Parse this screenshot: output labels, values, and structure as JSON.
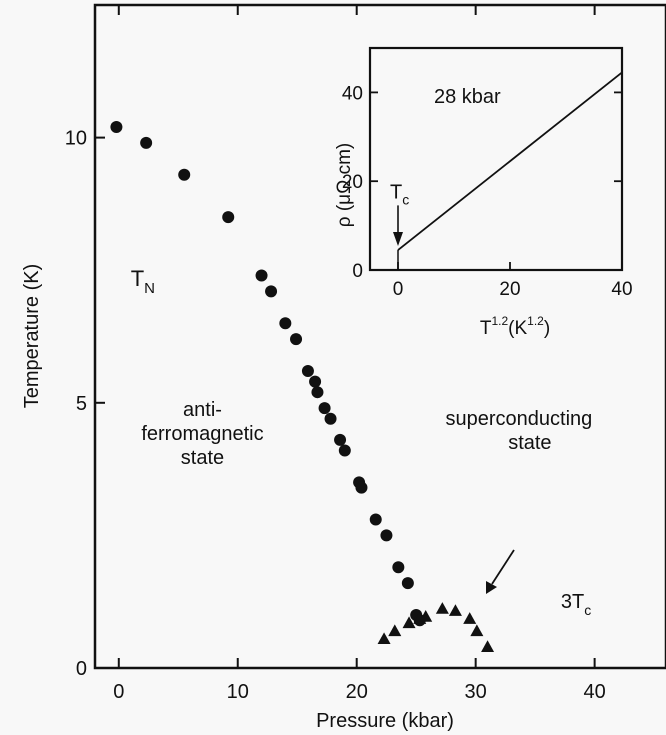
{
  "chart_data": [
    {
      "type": "scatter",
      "xlabel": "Pressure (kbar)",
      "ylabel": "Temperature (K)",
      "xlim": [
        -2,
        46
      ],
      "ylim": [
        0,
        12.5
      ],
      "xticks": [
        0,
        10,
        20,
        30,
        40
      ],
      "yticks": [
        0,
        5,
        10
      ],
      "grid": false,
      "series": [
        {
          "name": "T_N",
          "marker": "circle",
          "x": [
            -0.2,
            2.3,
            5.5,
            9.2,
            12.0,
            12.8,
            14.0,
            14.9,
            15.9,
            16.5,
            16.7,
            17.3,
            17.8,
            18.6,
            19.0,
            20.2,
            20.4,
            21.6,
            22.5,
            23.5,
            24.3,
            25.0,
            25.3
          ],
          "y": [
            10.2,
            9.9,
            9.3,
            8.5,
            7.4,
            7.1,
            6.5,
            6.2,
            5.6,
            5.4,
            5.2,
            4.9,
            4.7,
            4.3,
            4.1,
            3.5,
            3.4,
            2.8,
            2.5,
            1.9,
            1.6,
            1.0,
            0.9
          ]
        },
        {
          "name": "3T_c",
          "marker": "triangle",
          "x": [
            22.3,
            23.2,
            24.4,
            25.3,
            25.8,
            27.2,
            28.3,
            29.5,
            30.1,
            31.0
          ],
          "y": [
            0.55,
            0.7,
            0.85,
            0.93,
            0.97,
            1.12,
            1.08,
            0.93,
            0.7,
            0.4
          ]
        }
      ],
      "annotations": [
        {
          "text": "T",
          "sub": "N",
          "x": 1.0,
          "y": 7.2
        },
        {
          "line1": "anti-",
          "line2": "ferromagnetic",
          "line3": "state",
          "x": 3.0,
          "y": 4.0
        },
        {
          "line1": "superconducting",
          "line2": "state",
          "x": 28.0,
          "y": 3.0
        },
        {
          "text": "3T",
          "sub": "c",
          "x": 37.5,
          "y": 1.0
        }
      ]
    },
    {
      "type": "line",
      "title": "28 kbar",
      "xlabel_base": "T",
      "xlabel_exp": "1.2",
      "xlabel_unit_open": "(K",
      "xlabel_unit_exp": "1.2",
      "xlabel_unit_close": ")",
      "ylabel": "ρ (μΩ cm)",
      "xlim": [
        -5,
        40
      ],
      "ylim": [
        0,
        50
      ],
      "xticks": [
        0,
        20,
        40
      ],
      "yticks": [
        0,
        20,
        40
      ],
      "series": [
        {
          "x": [
            0,
            40
          ],
          "y": [
            4.5,
            44.5
          ]
        }
      ],
      "annotations": [
        {
          "text": "T",
          "sub": "c",
          "x": 0,
          "y": 15
        }
      ]
    }
  ]
}
